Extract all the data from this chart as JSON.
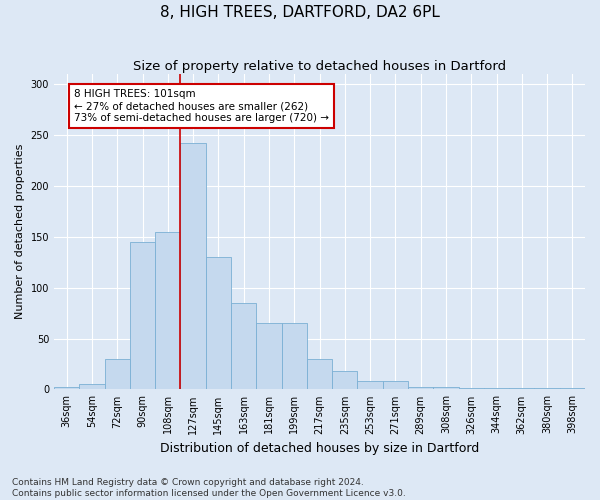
{
  "title": "8, HIGH TREES, DARTFORD, DA2 6PL",
  "subtitle": "Size of property relative to detached houses in Dartford",
  "xlabel": "Distribution of detached houses by size in Dartford",
  "ylabel": "Number of detached properties",
  "categories": [
    "36sqm",
    "54sqm",
    "72sqm",
    "90sqm",
    "108sqm",
    "127sqm",
    "145sqm",
    "163sqm",
    "181sqm",
    "199sqm",
    "217sqm",
    "235sqm",
    "253sqm",
    "271sqm",
    "289sqm",
    "308sqm",
    "326sqm",
    "344sqm",
    "362sqm",
    "380sqm",
    "398sqm"
  ],
  "values": [
    2,
    5,
    30,
    145,
    155,
    242,
    130,
    85,
    65,
    65,
    30,
    18,
    8,
    8,
    2,
    2,
    1,
    1,
    1,
    1,
    1
  ],
  "bar_color": "#c5d9ee",
  "bar_edge_color": "#7aafd4",
  "background_color": "#dde8f5",
  "grid_color": "#ffffff",
  "annotation_line1": "8 HIGH TREES: 101sqm",
  "annotation_line2": "← 27% of detached houses are smaller (262)",
  "annotation_line3": "73% of semi-detached houses are larger (720) →",
  "annotation_box_color": "#ffffff",
  "annotation_box_edge_color": "#cc0000",
  "vline_color": "#cc0000",
  "vline_x": 4.5,
  "ylim": [
    0,
    310
  ],
  "yticks": [
    0,
    50,
    100,
    150,
    200,
    250,
    300
  ],
  "footer_line1": "Contains HM Land Registry data © Crown copyright and database right 2024.",
  "footer_line2": "Contains public sector information licensed under the Open Government Licence v3.0.",
  "title_fontsize": 11,
  "subtitle_fontsize": 9.5,
  "xlabel_fontsize": 9,
  "ylabel_fontsize": 8,
  "tick_fontsize": 7,
  "annotation_fontsize": 7.5,
  "footer_fontsize": 6.5
}
